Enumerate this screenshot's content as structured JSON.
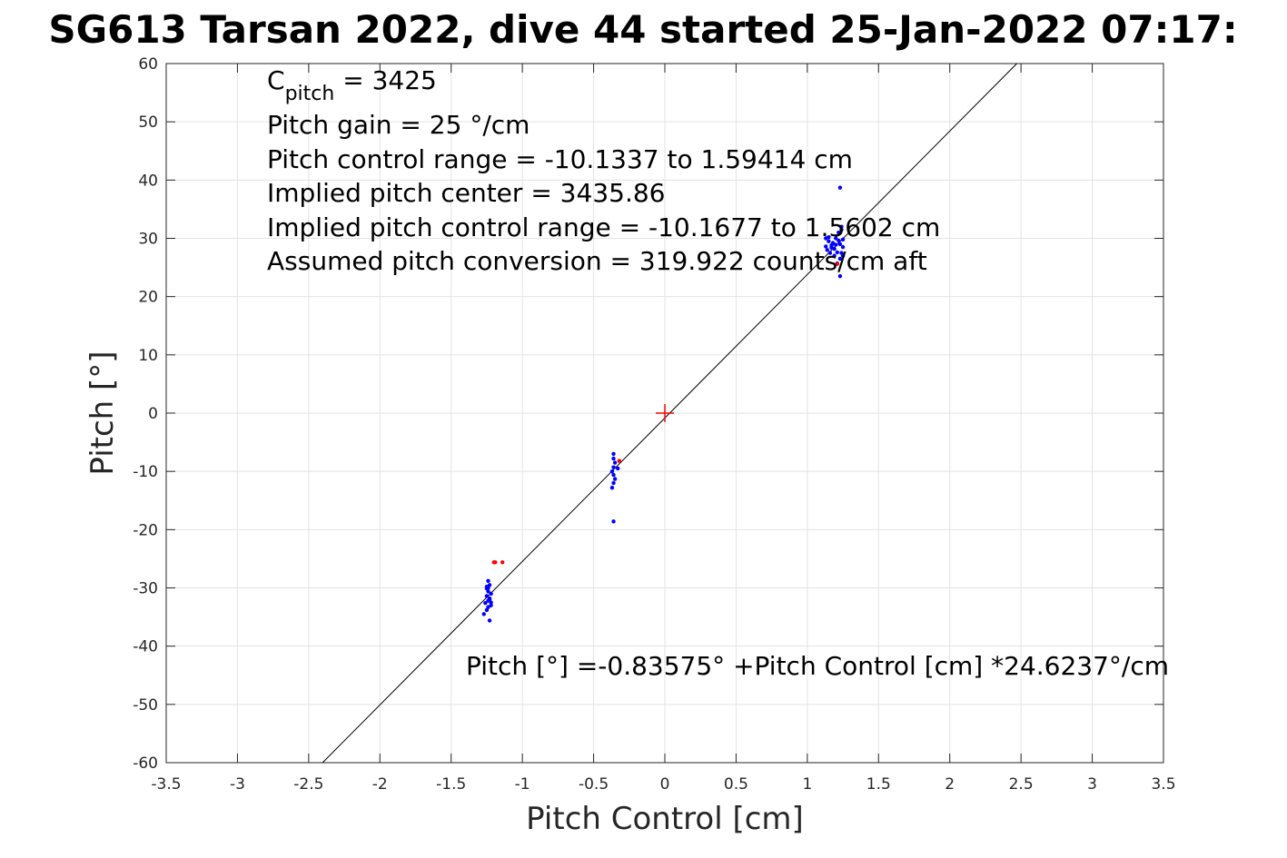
{
  "chart_data": {
    "type": "scatter",
    "title": "SG613 Tarsan 2022, dive 44 started 25-Jan-2022 07:17:",
    "xlabel": "Pitch Control [cm]",
    "ylabel": "Pitch [°]",
    "xlim": [
      -3.5,
      3.5
    ],
    "ylim": [
      -60,
      60
    ],
    "xticks": [
      -3.5,
      -3,
      -2.5,
      -2,
      -1.5,
      -1,
      -0.5,
      0,
      0.5,
      1,
      1.5,
      2,
      2.5,
      3,
      3.5
    ],
    "yticks": [
      -60,
      -50,
      -40,
      -30,
      -20,
      -10,
      0,
      10,
      20,
      30,
      40,
      50,
      60
    ],
    "grid": true,
    "annotations": {
      "cpitch_base": "C",
      "cpitch_sub": "pitch",
      "cpitch_rest": " = 3425",
      "line2": "Pitch gain = 25 °/cm",
      "line3": "Pitch control range = -10.1337 to 1.59414 cm",
      "line4": "Implied pitch center = 3435.86",
      "line5": "Implied pitch control range = -10.1677 to 1.5602 cm",
      "line6": "Assumed pitch conversion = 319.922 counts/cm aft",
      "fit_label": "Pitch [°] =-0.83575° +Pitch Control [cm] *24.6237°/cm"
    },
    "fit_line": {
      "intercept": -0.83575,
      "slope": 24.6237,
      "color": "#000000"
    },
    "center_marker": {
      "x": 0,
      "y": 0,
      "color": "#ff0000"
    },
    "series": [
      {
        "color": "#0000ff",
        "points": [
          [
            -1.24,
            -28.8
          ],
          [
            -1.23,
            -29.5
          ],
          [
            -1.25,
            -30.1
          ],
          [
            -1.24,
            -30.6
          ],
          [
            -1.22,
            -31.0
          ],
          [
            -1.25,
            -31.4
          ],
          [
            -1.23,
            -31.8
          ],
          [
            -1.24,
            -32.2
          ],
          [
            -1.26,
            -32.6
          ],
          [
            -1.22,
            -33.0
          ],
          [
            -1.24,
            -33.3
          ],
          [
            -1.25,
            -33.8
          ],
          [
            -1.27,
            -34.5
          ],
          [
            -1.23,
            -35.6
          ],
          [
            -1.24,
            -30.0
          ],
          [
            -1.23,
            -32.0
          ],
          [
            -1.25,
            -29.8
          ],
          [
            -1.22,
            -32.5
          ],
          [
            -0.36,
            -7.0
          ],
          [
            -0.36,
            -7.8
          ],
          [
            -0.35,
            -8.5
          ],
          [
            -0.36,
            -9.3
          ],
          [
            -0.37,
            -10.0
          ],
          [
            -0.36,
            -10.6
          ],
          [
            -0.35,
            -11.3
          ],
          [
            -0.36,
            -12.0
          ],
          [
            -0.37,
            -12.8
          ],
          [
            -0.33,
            -9.5
          ],
          [
            -0.36,
            -18.6
          ],
          [
            1.23,
            38.7
          ],
          [
            1.23,
            23.5
          ],
          [
            1.13,
            30.0
          ],
          [
            1.15,
            29.5
          ],
          [
            1.17,
            28.8
          ],
          [
            1.19,
            28.2
          ],
          [
            1.21,
            27.6
          ],
          [
            1.23,
            29.0
          ],
          [
            1.25,
            28.5
          ],
          [
            1.14,
            28.0
          ],
          [
            1.16,
            27.5
          ],
          [
            1.18,
            29.2
          ],
          [
            1.2,
            30.0
          ],
          [
            1.22,
            31.0
          ],
          [
            1.24,
            31.5
          ],
          [
            1.25,
            27.0
          ],
          [
            1.23,
            26.5
          ],
          [
            1.21,
            25.7
          ],
          [
            1.15,
            30.2
          ],
          [
            1.19,
            27.0
          ],
          [
            1.24,
            32.0
          ],
          [
            1.22,
            29.6
          ],
          [
            1.17,
            28.4
          ],
          [
            1.13,
            28.6
          ],
          [
            1.25,
            29.8
          ],
          [
            1.24,
            27.5
          ],
          [
            1.2,
            28.9
          ]
        ]
      },
      {
        "color": "#ff0000",
        "points": [
          [
            -1.2,
            -25.6
          ],
          [
            -1.19,
            -25.6
          ],
          [
            -1.14,
            -25.6
          ],
          [
            -0.32,
            -8.2
          ],
          [
            1.21,
            25.6
          ]
        ]
      }
    ]
  }
}
